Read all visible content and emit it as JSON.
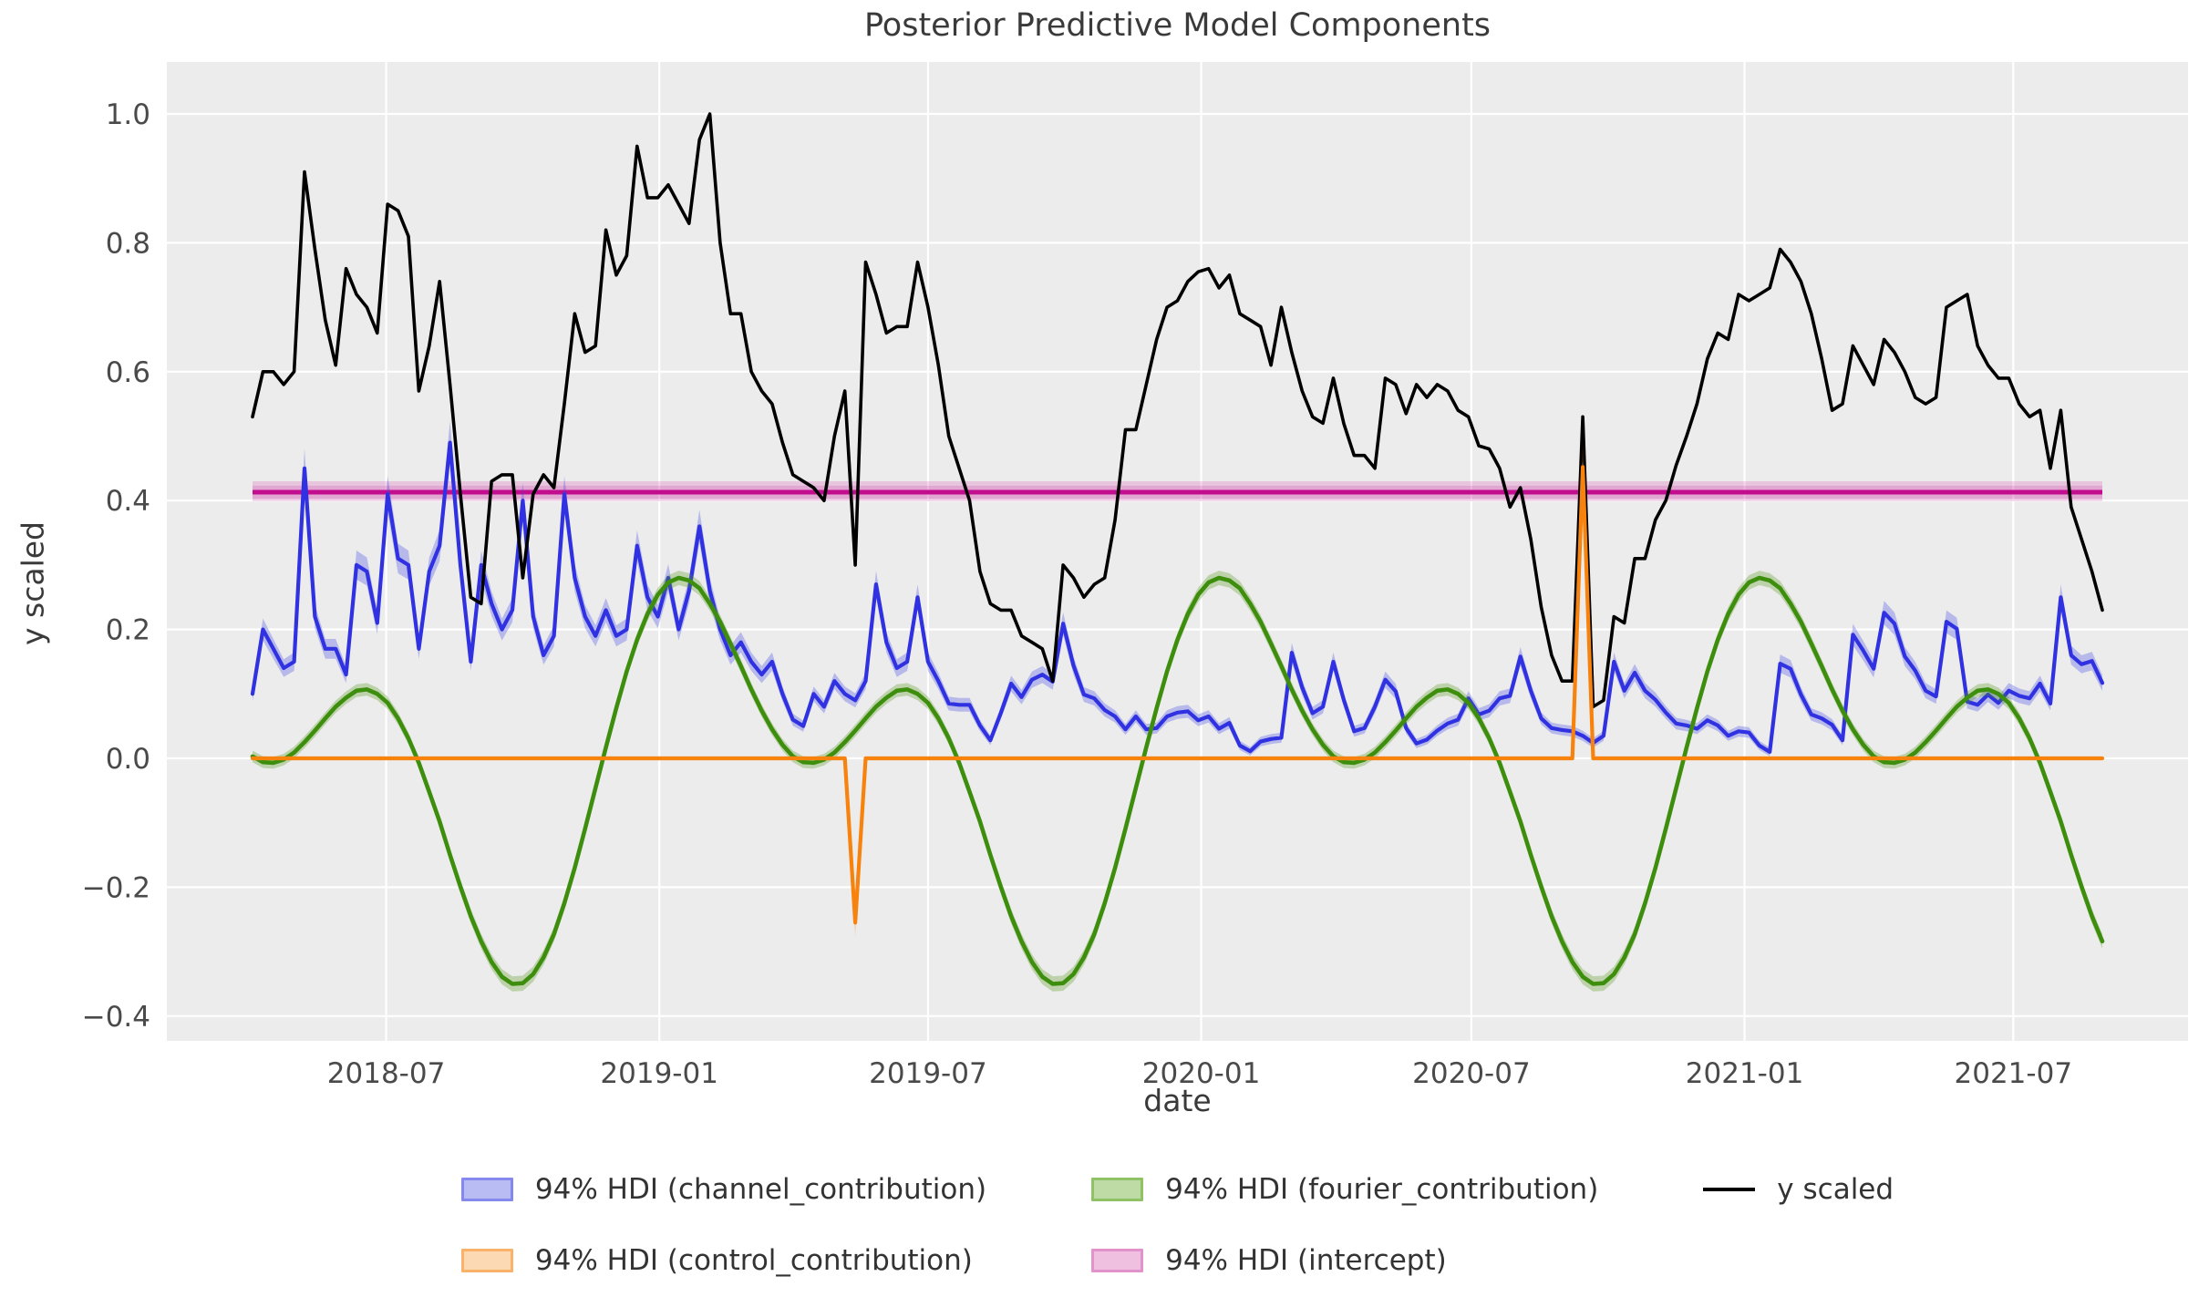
{
  "title": "Posterior Predictive Model Components",
  "x_axis": {
    "label": "date",
    "ticks": [
      {
        "label": "2018-07",
        "date": "2018-07-01"
      },
      {
        "label": "2019-01",
        "date": "2019-01-01"
      },
      {
        "label": "2019-07",
        "date": "2019-07-01"
      },
      {
        "label": "2020-01",
        "date": "2020-01-01"
      },
      {
        "label": "2020-07",
        "date": "2020-07-01"
      },
      {
        "label": "2021-01",
        "date": "2021-01-01"
      },
      {
        "label": "2021-07",
        "date": "2021-07-01"
      }
    ]
  },
  "y_axis": {
    "label": "y scaled",
    "ticks": [
      {
        "label": "1.0",
        "value": 1.0
      },
      {
        "label": "0.8",
        "value": 0.8
      },
      {
        "label": "0.6",
        "value": 0.6
      },
      {
        "label": "0.4",
        "value": 0.4
      },
      {
        "label": "0.2",
        "value": 0.2
      },
      {
        "label": "0.0",
        "value": 0.0
      },
      {
        "label": "−0.2",
        "value": -0.2
      },
      {
        "label": "−0.4",
        "value": -0.4
      }
    ]
  },
  "colors": {
    "plot_bg": "#ececec",
    "grid": "#ffffff",
    "tick_text": "#4a4a4a",
    "y_scaled": "#000000",
    "channel_line": "#3032e2",
    "channel_band": "rgba(60,66,230,0.30)",
    "control_line": "#f8820e",
    "control_band": "rgba(248,130,14,0.30)",
    "fourier_line": "#3e8e0e",
    "fourier_band": "rgba(80,150,20,0.30)",
    "intercept_line": "#c10d8e",
    "intercept_band": "rgba(210,60,170,0.22)"
  },
  "legend": {
    "items": [
      {
        "label": "94% HDI (channel_contribution)",
        "type": "patch",
        "fill": "#b9bcf2",
        "edge": "#8589ee"
      },
      {
        "label": "94% HDI (control_contribution)",
        "type": "patch",
        "fill": "#fcd9b2",
        "edge": "#fab268"
      },
      {
        "label": "94% HDI (fourier_contribution)",
        "type": "patch",
        "fill": "#bedaa5",
        "edge": "#8ec264"
      },
      {
        "label": "94% HDI (intercept)",
        "type": "patch",
        "fill": "#f0c0e0",
        "edge": "#e393cb"
      },
      {
        "label": "y scaled",
        "type": "line",
        "color": "#000000"
      }
    ]
  },
  "chart_data": {
    "type": "line",
    "title": "Posterior Predictive Model Components",
    "xlabel": "date",
    "ylabel": "y scaled",
    "x_start": "2018-04-02",
    "x_step_days": 7,
    "n": 179,
    "ylim": [
      -0.44,
      1.08
    ],
    "grid": true,
    "legend_position": "below",
    "series": {
      "y_scaled": {
        "name": "y scaled",
        "values": [
          0.53,
          0.6,
          0.6,
          0.58,
          0.6,
          0.91,
          0.79,
          0.68,
          0.61,
          0.76,
          0.72,
          0.7,
          0.66,
          0.86,
          0.85,
          0.81,
          0.57,
          0.64,
          0.74,
          0.58,
          0.41,
          0.25,
          0.24,
          0.43,
          0.44,
          0.44,
          0.28,
          0.41,
          0.44,
          0.42,
          0.55,
          0.69,
          0.63,
          0.64,
          0.82,
          0.75,
          0.78,
          0.95,
          0.87,
          0.87,
          0.89,
          0.86,
          0.83,
          0.96,
          1.0,
          0.8,
          0.69,
          0.69,
          0.6,
          0.57,
          0.55,
          0.49,
          0.44,
          0.43,
          0.42,
          0.4,
          0.5,
          0.57,
          0.3,
          0.77,
          0.72,
          0.66,
          0.67,
          0.67,
          0.77,
          0.7,
          0.61,
          0.5,
          0.45,
          0.4,
          0.29,
          0.24,
          0.23,
          0.23,
          0.19,
          0.18,
          0.17,
          0.12,
          0.3,
          0.28,
          0.25,
          0.27,
          0.28,
          0.37,
          0.51,
          0.51,
          0.58,
          0.65,
          0.7,
          0.71,
          0.74,
          0.755,
          0.76,
          0.73,
          0.75,
          0.69,
          0.68,
          0.67,
          0.61,
          0.7,
          0.63,
          0.57,
          0.53,
          0.52,
          0.59,
          0.52,
          0.47,
          0.47,
          0.45,
          0.59,
          0.58,
          0.535,
          0.58,
          0.56,
          0.58,
          0.57,
          0.54,
          0.53,
          0.485,
          0.48,
          0.45,
          0.39,
          0.42,
          0.34,
          0.235,
          0.16,
          0.12,
          0.12,
          0.53,
          0.08,
          0.09,
          0.22,
          0.21,
          0.31,
          0.31,
          0.37,
          0.4,
          0.455,
          0.5,
          0.55,
          0.62,
          0.66,
          0.65,
          0.72,
          0.71,
          0.72,
          0.73,
          0.79,
          0.77,
          0.74,
          0.69,
          0.62,
          0.54,
          0.55,
          0.64,
          0.61,
          0.58,
          0.65,
          0.63,
          0.6,
          0.56,
          0.55,
          0.56,
          0.7,
          0.71,
          0.72,
          0.64,
          0.61,
          0.59,
          0.59,
          0.55,
          0.53,
          0.54,
          0.45,
          0.54,
          0.39,
          0.34,
          0.29,
          0.23
        ]
      },
      "channel": {
        "name": "94% HDI (channel_contribution)",
        "hdi_rule": {
          "base": 0.006,
          "scale": 0.055
        },
        "values": [
          0.1,
          0.2,
          0.17,
          0.14,
          0.15,
          0.45,
          0.22,
          0.17,
          0.17,
          0.13,
          0.3,
          0.29,
          0.21,
          0.41,
          0.31,
          0.3,
          0.17,
          0.29,
          0.33,
          0.49,
          0.3,
          0.15,
          0.3,
          0.24,
          0.2,
          0.23,
          0.4,
          0.22,
          0.16,
          0.19,
          0.41,
          0.28,
          0.22,
          0.19,
          0.23,
          0.19,
          0.2,
          0.33,
          0.25,
          0.22,
          0.28,
          0.2,
          0.26,
          0.36,
          0.26,
          0.2,
          0.16,
          0.18,
          0.15,
          0.13,
          0.15,
          0.1,
          0.06,
          0.05,
          0.1,
          0.08,
          0.12,
          0.1,
          0.09,
          0.12,
          0.27,
          0.18,
          0.14,
          0.15,
          0.25,
          0.15,
          0.12,
          0.085,
          0.083,
          0.083,
          0.051,
          0.028,
          0.07,
          0.116,
          0.095,
          0.122,
          0.13,
          0.119,
          0.209,
          0.144,
          0.099,
          0.093,
          0.075,
          0.065,
          0.045,
          0.065,
          0.045,
          0.047,
          0.065,
          0.071,
          0.073,
          0.059,
          0.065,
          0.046,
          0.055,
          0.02,
          0.011,
          0.026,
          0.03,
          0.032,
          0.164,
          0.11,
          0.07,
          0.08,
          0.15,
          0.091,
          0.042,
          0.047,
          0.08,
          0.122,
          0.104,
          0.047,
          0.023,
          0.029,
          0.043,
          0.054,
          0.06,
          0.093,
          0.068,
          0.074,
          0.093,
          0.097,
          0.158,
          0.105,
          0.062,
          0.047,
          0.044,
          0.042,
          0.035,
          0.024,
          0.035,
          0.15,
          0.105,
          0.133,
          0.105,
          0.091,
          0.071,
          0.054,
          0.051,
          0.046,
          0.059,
          0.051,
          0.035,
          0.042,
          0.04,
          0.02,
          0.01,
          0.147,
          0.139,
          0.099,
          0.068,
          0.062,
          0.052,
          0.028,
          0.192,
          0.167,
          0.139,
          0.226,
          0.209,
          0.158,
          0.136,
          0.105,
          0.096,
          0.212,
          0.201,
          0.088,
          0.083,
          0.099,
          0.086,
          0.105,
          0.097,
          0.093,
          0.116,
          0.085,
          0.25,
          0.16,
          0.146,
          0.151,
          0.117
        ]
      },
      "control": {
        "name": "94% HDI (control_contribution)",
        "base_value": 0.0,
        "hdi_rule": {
          "base": 0.003,
          "scale": 0.07
        },
        "spikes": [
          {
            "index": 58,
            "date": "2019-05-13",
            "value": -0.255
          },
          {
            "index": 128,
            "date": "2020-09-14",
            "value": 0.452
          }
        ]
      },
      "fourier": {
        "name": "94% HDI (fourier_contribution)",
        "hdi_rule": {
          "base": 0.009,
          "scale": 0.008
        },
        "annual_period_weeks": 52,
        "annual_values": [
          0.003,
          -0.006,
          -0.007,
          -0.002,
          0.009,
          0.025,
          0.043,
          0.062,
          0.08,
          0.094,
          0.105,
          0.107,
          0.1,
          0.086,
          0.062,
          0.031,
          -0.007,
          -0.052,
          -0.098,
          -0.15,
          -0.199,
          -0.245,
          -0.284,
          -0.316,
          -0.339,
          -0.35,
          -0.349,
          -0.335,
          -0.309,
          -0.273,
          -0.225,
          -0.17,
          -0.109,
          -0.046,
          0.017,
          0.078,
          0.135,
          0.184,
          0.224,
          0.254,
          0.273,
          0.28,
          0.276,
          0.264,
          0.24,
          0.212,
          0.178,
          0.143,
          0.107,
          0.074,
          0.045,
          0.021
        ]
      },
      "intercept": {
        "name": "94% HDI (intercept)",
        "mean": 0.413,
        "hdi": [
          0.399,
          0.43
        ],
        "hdi_inner": [
          0.403,
          0.423
        ]
      }
    }
  }
}
